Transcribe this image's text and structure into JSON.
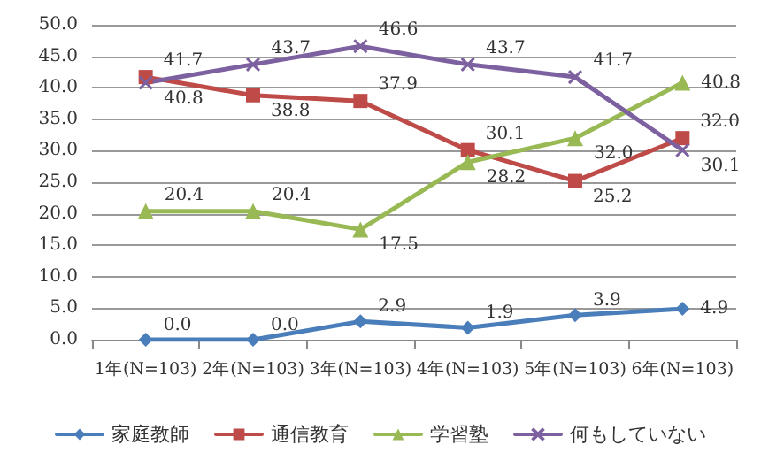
{
  "chart_data": {
    "type": "line",
    "categories": [
      "1年(N=103)",
      "2年(N=103)",
      "3年(N=103)",
      "4年(N=103)",
      "5年(N=103)",
      "6年(N=103)"
    ],
    "series": [
      {
        "name": "家庭教師",
        "color": "#4a7ebb",
        "marker": "diamond",
        "values": [
          0,
          0,
          2.9,
          1.9,
          3.9,
          4.9
        ],
        "value_labels": [
          "0.0",
          "0.0",
          "2.9",
          "1.9",
          "3.9",
          "4.9"
        ]
      },
      {
        "name": "通信教育",
        "color": "#be4b48",
        "marker": "square",
        "values": [
          41.7,
          38.8,
          37.9,
          30.1,
          25.2,
          32.0
        ],
        "value_labels": [
          "41.7",
          "38.8",
          "37.9",
          "30.1",
          "25.2",
          "32.0"
        ]
      },
      {
        "name": "学習塾",
        "color": "#98b954",
        "marker": "triangle",
        "values": [
          20.4,
          20.4,
          17.5,
          28.2,
          32.0,
          40.8
        ],
        "value_labels": [
          "20.4",
          "20.4",
          "17.5",
          "28.2",
          "32.0",
          "40.8"
        ]
      },
      {
        "name": "何もしていない",
        "color": "#7d60a0",
        "marker": "cross",
        "values": [
          40.8,
          43.7,
          46.6,
          43.7,
          41.7,
          30.1
        ],
        "value_labels": [
          "40.8",
          "43.7",
          "46.6",
          "43.7",
          "41.7",
          "30.1"
        ]
      }
    ],
    "ylim": [
      0,
      50
    ],
    "yticks": [
      {
        "value": 0,
        "label": "0.0"
      },
      {
        "value": 5,
        "label": "5.0"
      },
      {
        "value": 10,
        "label": "10.0"
      },
      {
        "value": 15,
        "label": "15.0"
      },
      {
        "value": 20,
        "label": "20.0"
      },
      {
        "value": 25,
        "label": "25.0"
      },
      {
        "value": 30,
        "label": "30.0"
      },
      {
        "value": 35,
        "label": "35.0"
      },
      {
        "value": 40,
        "label": "40.0"
      },
      {
        "value": 45,
        "label": "45.0"
      },
      {
        "value": 50,
        "label": "50.0"
      }
    ],
    "grid": "y",
    "legend": "bottom",
    "line_style": "solid"
  }
}
